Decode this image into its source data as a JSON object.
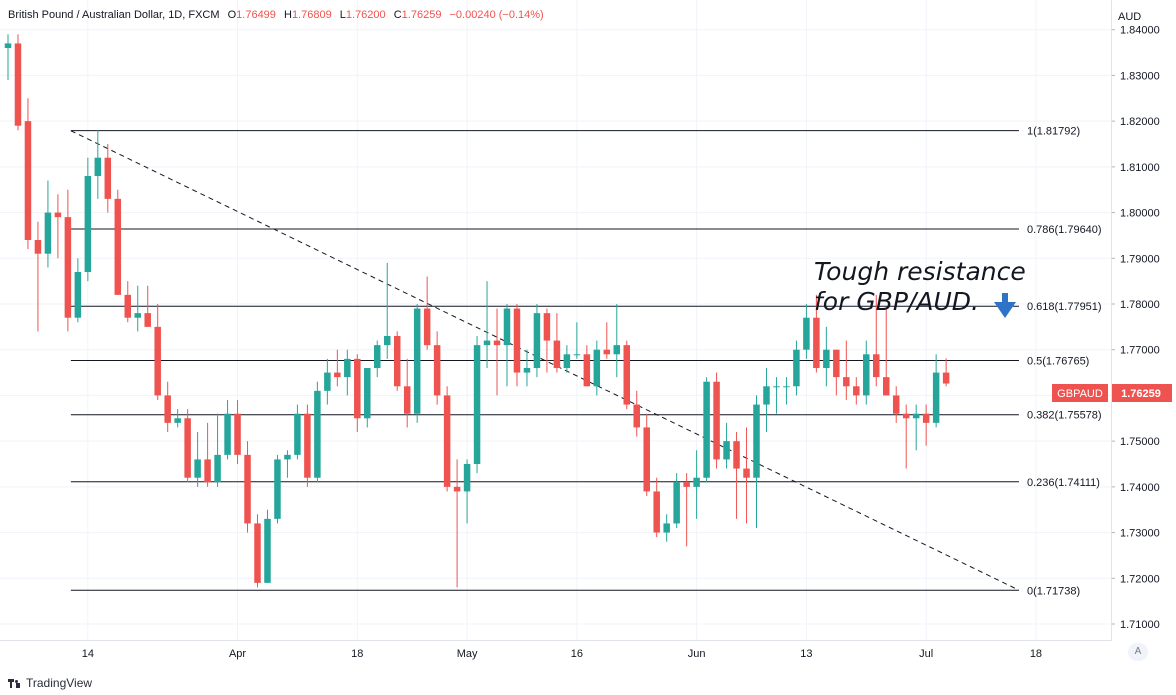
{
  "header": {
    "title": "British Pound / Australian Dollar, 1D, FXCM",
    "o_label": "O",
    "o_value": "1.76499",
    "h_label": "H",
    "h_value": "1.76809",
    "l_label": "L",
    "l_value": "1.76200",
    "c_label": "C",
    "c_value": "1.76259",
    "change": "−0.00240 (−0.14%)"
  },
  "currency_label": "AUD",
  "auto_button": "A",
  "watermark": "TradingView",
  "price_tag": {
    "symbol": "GBPAUD",
    "price": "1.76259"
  },
  "annotation": {
    "line1": "Tough resistance",
    "line2": "for GBP/AUD."
  },
  "colors": {
    "up": "#26a69a",
    "down": "#ef5350",
    "grid": "#f0f3fa",
    "text": "#131722"
  },
  "chart_data": {
    "type": "candlestick",
    "y_axis": {
      "ylim": [
        1.7065,
        1.8465
      ],
      "ticks": [
        "1.84000",
        "1.83000",
        "1.82000",
        "1.81000",
        "1.80000",
        "1.79000",
        "1.78000",
        "1.77000",
        "1.76000",
        "1.75000",
        "1.74000",
        "1.73000",
        "1.72000",
        "1.71000"
      ]
    },
    "x_axis": {
      "ticks": [
        "14",
        "Apr",
        "18",
        "May",
        "16",
        "Jun",
        "13",
        "Jul",
        "18"
      ]
    },
    "fib_levels": [
      {
        "label": "1(1.81792)",
        "value": 1.81792
      },
      {
        "label": "0.786(1.79640)",
        "value": 1.7964
      },
      {
        "label": "0.618(1.77951)",
        "value": 1.77951
      },
      {
        "label": "0.5(1.76765)",
        "value": 1.76765
      },
      {
        "label": "0.382(1.75578)",
        "value": 1.75578
      },
      {
        "label": "0.236(1.74111)",
        "value": 1.74111
      },
      {
        "label": "0(1.71738)",
        "value": 1.71738
      }
    ],
    "trendline": {
      "from": 1.8179,
      "to": 1.7174
    },
    "candles": [
      [
        1.836,
        1.839,
        1.829,
        1.837
      ],
      [
        1.837,
        1.839,
        1.818,
        1.819
      ],
      [
        1.82,
        1.825,
        1.792,
        1.794
      ],
      [
        1.794,
        1.798,
        1.774,
        1.791
      ],
      [
        1.791,
        1.807,
        1.788,
        1.8
      ],
      [
        1.8,
        1.804,
        1.79,
        1.799
      ],
      [
        1.799,
        1.805,
        1.774,
        1.777
      ],
      [
        1.777,
        1.79,
        1.776,
        1.787
      ],
      [
        1.787,
        1.812,
        1.785,
        1.808
      ],
      [
        1.808,
        1.818,
        1.803,
        1.812
      ],
      [
        1.812,
        1.815,
        1.8,
        1.803
      ],
      [
        1.803,
        1.805,
        1.782,
        1.782
      ],
      [
        1.782,
        1.785,
        1.776,
        1.777
      ],
      [
        1.777,
        1.784,
        1.774,
        1.778
      ],
      [
        1.778,
        1.784,
        1.775,
        1.775
      ],
      [
        1.775,
        1.78,
        1.759,
        1.76
      ],
      [
        1.76,
        1.763,
        1.752,
        1.754
      ],
      [
        1.754,
        1.757,
        1.753,
        1.755
      ],
      [
        1.755,
        1.757,
        1.741,
        1.742
      ],
      [
        1.742,
        1.752,
        1.74,
        1.746
      ],
      [
        1.746,
        1.754,
        1.74,
        1.741
      ],
      [
        1.741,
        1.756,
        1.74,
        1.747
      ],
      [
        1.747,
        1.759,
        1.746,
        1.756
      ],
      [
        1.756,
        1.759,
        1.745,
        1.747
      ],
      [
        1.747,
        1.75,
        1.73,
        1.732
      ],
      [
        1.732,
        1.734,
        1.718,
        1.719
      ],
      [
        1.719,
        1.735,
        1.72,
        1.733
      ],
      [
        1.733,
        1.747,
        1.732,
        1.746
      ],
      [
        1.746,
        1.748,
        1.742,
        1.747
      ],
      [
        1.747,
        1.758,
        1.746,
        1.756
      ],
      [
        1.756,
        1.758,
        1.74,
        1.742
      ],
      [
        1.742,
        1.763,
        1.741,
        1.761
      ],
      [
        1.761,
        1.768,
        1.758,
        1.765
      ],
      [
        1.765,
        1.77,
        1.762,
        1.764
      ],
      [
        1.764,
        1.77,
        1.76,
        1.768
      ],
      [
        1.768,
        1.769,
        1.752,
        1.755
      ],
      [
        1.755,
        1.766,
        1.753,
        1.766
      ],
      [
        1.766,
        1.772,
        1.764,
        1.771
      ],
      [
        1.771,
        1.789,
        1.768,
        1.773
      ],
      [
        1.773,
        1.774,
        1.761,
        1.762
      ],
      [
        1.762,
        1.768,
        1.753,
        1.756
      ],
      [
        1.756,
        1.78,
        1.754,
        1.779
      ],
      [
        1.779,
        1.786,
        1.77,
        1.771
      ],
      [
        1.771,
        1.774,
        1.758,
        1.76
      ],
      [
        1.76,
        1.762,
        1.739,
        1.74
      ],
      [
        1.74,
        1.746,
        1.718,
        1.739
      ],
      [
        1.739,
        1.746,
        1.732,
        1.745
      ],
      [
        1.745,
        1.773,
        1.743,
        1.771
      ],
      [
        1.771,
        1.785,
        1.766,
        1.772
      ],
      [
        1.772,
        1.779,
        1.76,
        1.771
      ],
      [
        1.771,
        1.78,
        1.762,
        1.779
      ],
      [
        1.779,
        1.78,
        1.762,
        1.765
      ],
      [
        1.765,
        1.77,
        1.762,
        1.766
      ],
      [
        1.766,
        1.78,
        1.764,
        1.778
      ],
      [
        1.778,
        1.779,
        1.765,
        1.772
      ],
      [
        1.772,
        1.778,
        1.765,
        1.766
      ],
      [
        1.766,
        1.771,
        1.765,
        1.769
      ],
      [
        1.769,
        1.776,
        1.768,
        1.769
      ],
      [
        1.769,
        1.771,
        1.762,
        1.762
      ],
      [
        1.762,
        1.772,
        1.76,
        1.77
      ],
      [
        1.77,
        1.776,
        1.768,
        1.769
      ],
      [
        1.769,
        1.78,
        1.764,
        1.771
      ],
      [
        1.771,
        1.772,
        1.757,
        1.758
      ],
      [
        1.758,
        1.761,
        1.751,
        1.753
      ],
      [
        1.753,
        1.756,
        1.738,
        1.739
      ],
      [
        1.739,
        1.742,
        1.729,
        1.73
      ],
      [
        1.73,
        1.734,
        1.728,
        1.732
      ],
      [
        1.732,
        1.743,
        1.731,
        1.741
      ],
      [
        1.741,
        1.743,
        1.727,
        1.74
      ],
      [
        1.74,
        1.748,
        1.733,
        1.742
      ],
      [
        1.742,
        1.764,
        1.741,
        1.763
      ],
      [
        1.763,
        1.765,
        1.744,
        1.746
      ],
      [
        1.746,
        1.754,
        1.744,
        1.75
      ],
      [
        1.75,
        1.752,
        1.733,
        1.744
      ],
      [
        1.744,
        1.753,
        1.732,
        1.742
      ],
      [
        1.742,
        1.76,
        1.731,
        1.758
      ],
      [
        1.758,
        1.766,
        1.752,
        1.762
      ],
      [
        1.762,
        1.764,
        1.756,
        1.762
      ],
      [
        1.762,
        1.764,
        1.758,
        1.762
      ],
      [
        1.762,
        1.772,
        1.76,
        1.77
      ],
      [
        1.77,
        1.78,
        1.768,
        1.777
      ],
      [
        1.777,
        1.782,
        1.765,
        1.766
      ],
      [
        1.766,
        1.775,
        1.762,
        1.77
      ],
      [
        1.77,
        1.77,
        1.76,
        1.764
      ],
      [
        1.764,
        1.772,
        1.759,
        1.762
      ],
      [
        1.762,
        1.764,
        1.758,
        1.76
      ],
      [
        1.76,
        1.772,
        1.758,
        1.769
      ],
      [
        1.769,
        1.782,
        1.762,
        1.764
      ],
      [
        1.764,
        1.779,
        1.76,
        1.76
      ],
      [
        1.76,
        1.762,
        1.754,
        1.756
      ],
      [
        1.756,
        1.758,
        1.744,
        1.755
      ],
      [
        1.755,
        1.758,
        1.748,
        1.756
      ],
      [
        1.756,
        1.758,
        1.749,
        1.754
      ],
      [
        1.754,
        1.769,
        1.753,
        1.765
      ],
      [
        1.765,
        1.7681,
        1.762,
        1.7626
      ]
    ]
  }
}
